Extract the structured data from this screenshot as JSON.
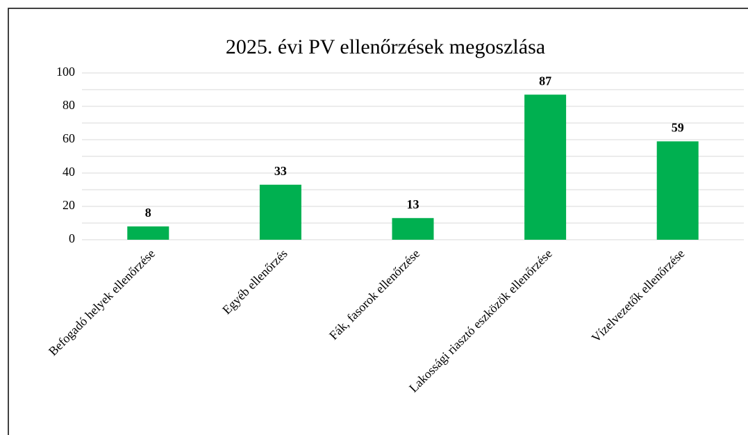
{
  "chart_data": {
    "type": "bar",
    "title": "2025. évi PV ellenőrzések megoszlása",
    "categories": [
      "Befogadó helyek ellenőrzése",
      "Egyéb ellenőrzés",
      "Fák, fasorok ellenőrzése",
      "Lakossági riasztó eszközök ellenőrzése",
      "Vízelvezetők ellenőrzése"
    ],
    "values": [
      8,
      33,
      13,
      87,
      59
    ],
    "color": "#00b050",
    "ylim": [
      0,
      100
    ],
    "yticks": [
      0,
      20,
      40,
      60,
      80,
      100
    ],
    "yminorticks": [
      10,
      30,
      50,
      70,
      90
    ],
    "grid": true
  }
}
